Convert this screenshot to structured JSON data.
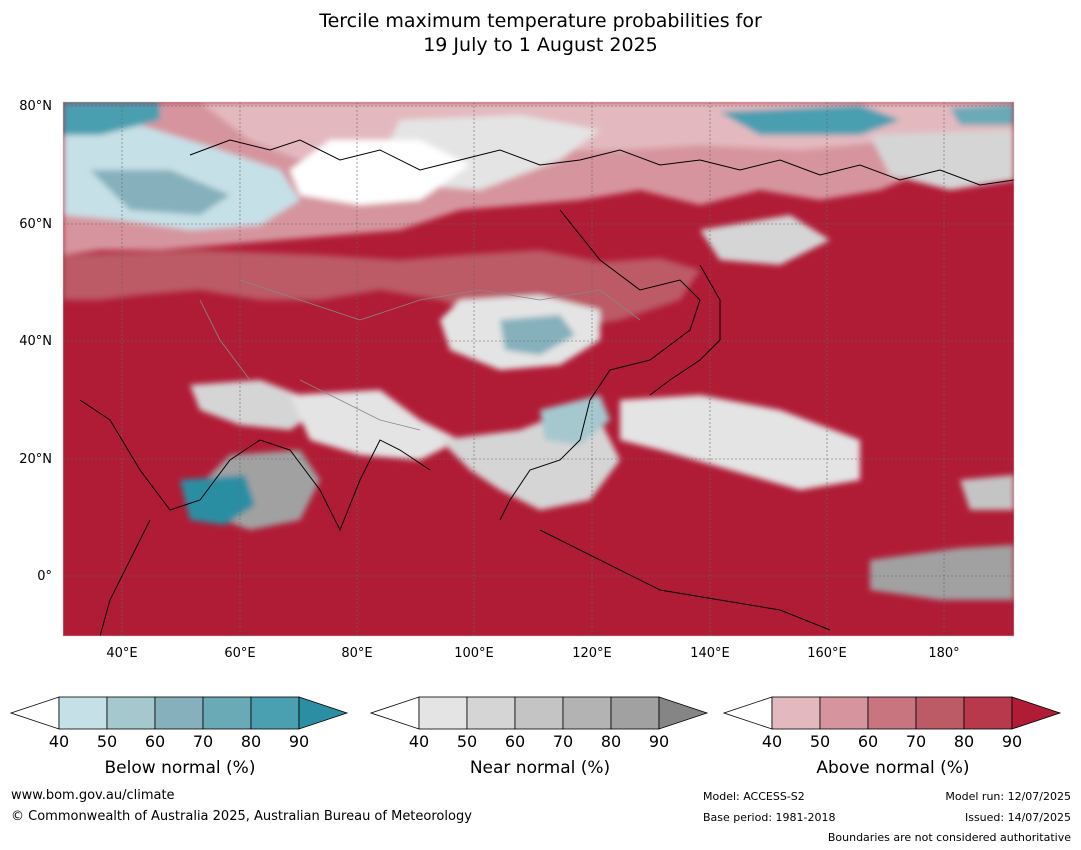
{
  "title": {
    "line1": "Tercile maximum temperature probabilities for",
    "line2": "19 July to 1 August 2025"
  },
  "map": {
    "lat_labels": [
      "80°N",
      "60°N",
      "40°N",
      "20°N",
      "0°"
    ],
    "lon_labels": [
      "40°E",
      "60°E",
      "80°E",
      "100°E",
      "120°E",
      "140°E",
      "160°E",
      "180°"
    ]
  },
  "colorbars": [
    {
      "label": "Below normal (%)",
      "ticks": [
        "40",
        "50",
        "60",
        "70",
        "80",
        "90"
      ],
      "colors": [
        "#ffffff",
        "#c6e0e7",
        "#a5c8cf",
        "#86b0bc",
        "#6aa9b6",
        "#4a9fb0",
        "#2b8ea3"
      ]
    },
    {
      "label": "Near normal (%)",
      "ticks": [
        "40",
        "50",
        "60",
        "70",
        "80",
        "90"
      ],
      "colors": [
        "#ffffff",
        "#e4e4e4",
        "#d5d5d5",
        "#c4c4c4",
        "#b3b3b3",
        "#a1a1a1",
        "#858585"
      ]
    },
    {
      "label": "Above normal (%)",
      "ticks": [
        "40",
        "50",
        "60",
        "70",
        "80",
        "90"
      ],
      "colors": [
        "#ffffff",
        "#e3b9bf",
        "#d6959e",
        "#c97580",
        "#bc5a66",
        "#b8394c",
        "#b01c36"
      ]
    }
  ],
  "footer": {
    "url": "www.bom.gov.au/climate",
    "copyright": "© Commonwealth of Australia 2025, Australian Bureau of Meteorology",
    "model": "Model: ACCESS-S2",
    "base_period": "Base period: 1981-2018",
    "model_run": "Model run: 12/07/2025",
    "issued": "Issued: 14/07/2025",
    "disclaimer": "Boundaries are not considered authoritative"
  }
}
